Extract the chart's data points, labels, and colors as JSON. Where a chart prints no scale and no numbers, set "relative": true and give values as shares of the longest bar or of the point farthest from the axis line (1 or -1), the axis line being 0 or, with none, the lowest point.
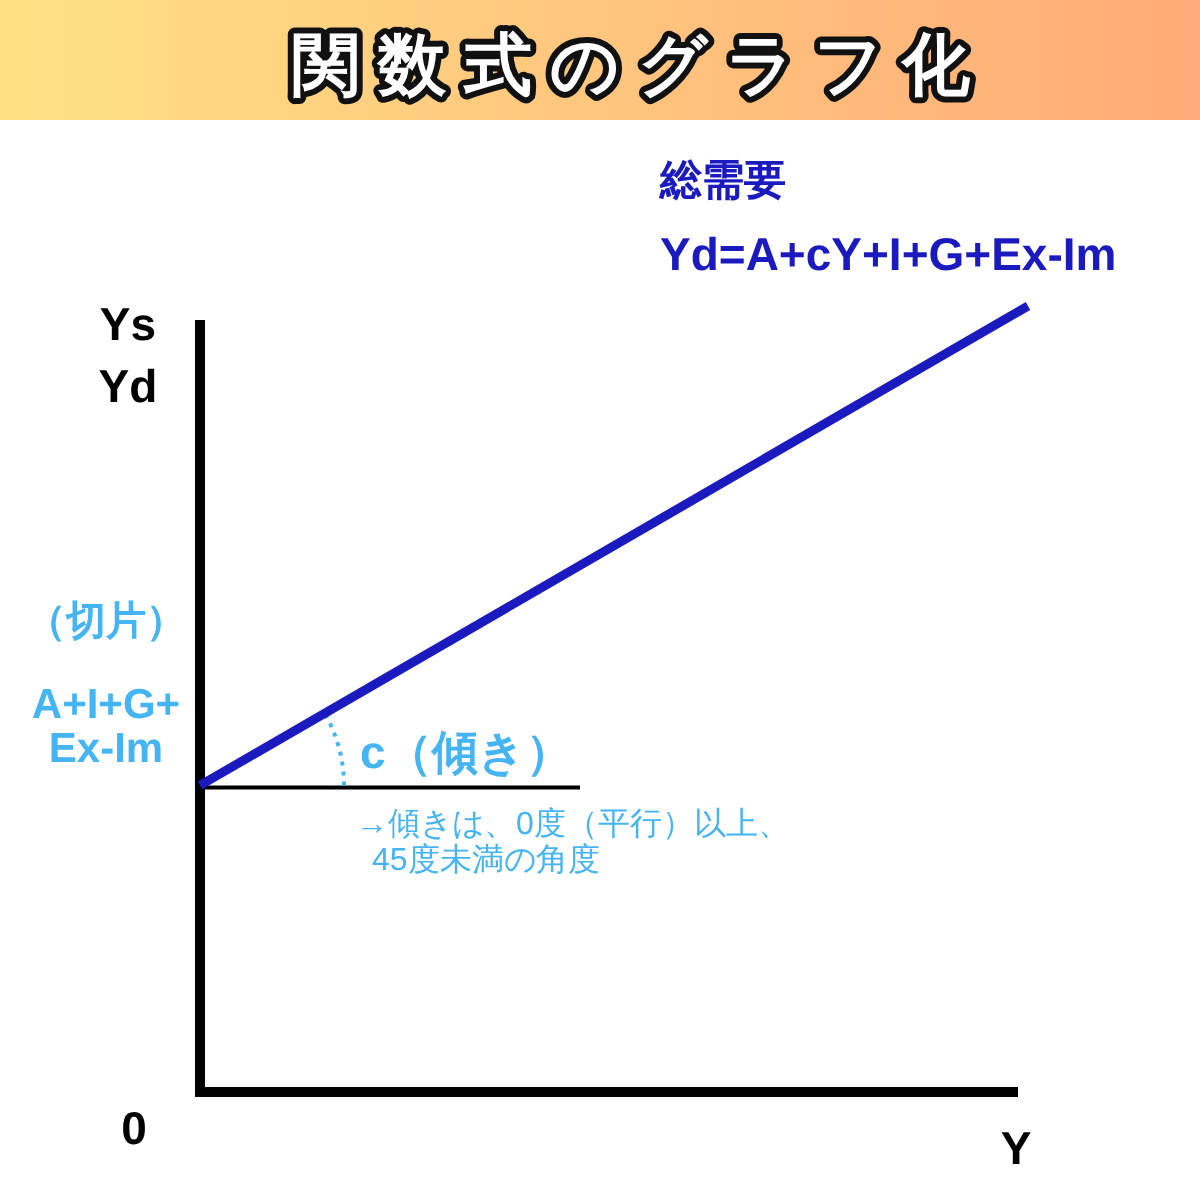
{
  "chart_data": {
    "type": "line",
    "title": "関数式のグラフ化",
    "xlabel": "Y",
    "ylabel": "Ys Yd",
    "relative": true,
    "categories": [
      null,
      null
    ],
    "series": [
      {
        "name": "総需要",
        "color": "#1a1abf",
        "values": [
          0.39,
          1
        ]
      }
    ],
    "annotations": [
      "Yd=A+cY+I+G+Ex-Im",
      "0",
      "（切片）",
      "A+I+G+ Ex-Im",
      "c（傾き）",
      "→傾きは、0度（平行）以上、45度未満の角度"
    ]
  }
}
